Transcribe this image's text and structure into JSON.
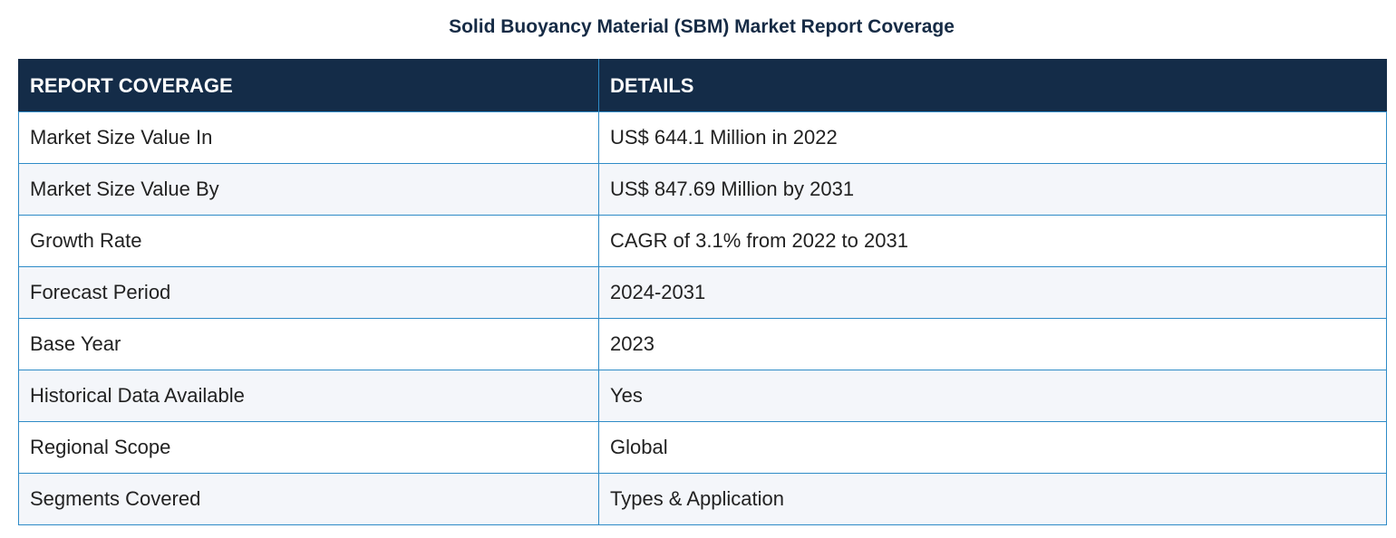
{
  "title": "Solid Buoyancy Material (SBM) Market Report Coverage",
  "table": {
    "headers": [
      "REPORT COVERAGE",
      "DETAILS"
    ],
    "rows": [
      [
        "Market Size Value In",
        "US$ 644.1 Million in 2022"
      ],
      [
        "Market Size Value By",
        "US$ 847.69 Million by 2031"
      ],
      [
        "Growth Rate",
        "CAGR of 3.1% from 2022 to 2031"
      ],
      [
        "Forecast Period",
        "2024-2031"
      ],
      [
        "Base Year",
        "2023"
      ],
      [
        "Historical Data Available",
        "Yes"
      ],
      [
        "Regional Scope",
        "Global"
      ],
      [
        "Segments Covered",
        "Types & Application"
      ]
    ]
  },
  "colors": {
    "header_bg": "#142c48",
    "border": "#2e8bc7",
    "title_text": "#162b45",
    "alt_row_bg": "#f4f6fa"
  }
}
